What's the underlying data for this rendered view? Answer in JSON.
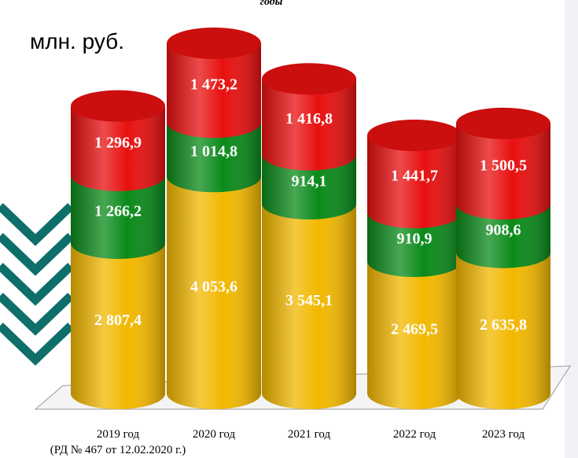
{
  "chart_data": {
    "type": "stacked-cylinder",
    "title": "годы",
    "unit_label": "млн. руб.",
    "categories": [
      "2019 год",
      "2020 год",
      "2021 год",
      "2022 год",
      "2023 год"
    ],
    "category_note": "(РД № 467 от 12.02.2020 г.)",
    "series": [
      {
        "color": "#f2b800",
        "values": [
          2807.4,
          4053.6,
          3545.1,
          2469.5,
          2635.8
        ],
        "value_labels": [
          "2 807,4",
          "4 053,6",
          "3 545,1",
          "2 469,5",
          "2 635,8"
        ]
      },
      {
        "color": "#0a8a1a",
        "values": [
          1266.2,
          1014.8,
          914.1,
          910.9,
          908.6
        ],
        "value_labels": [
          "1 266,2",
          "1 014,8",
          "914,1",
          "910,9",
          "908,6"
        ]
      },
      {
        "color": "#e81010",
        "values": [
          1296.9,
          1473.2,
          1416.8,
          1441.7,
          1500.5
        ],
        "value_labels": [
          "1 296,9",
          "1 473,2",
          "1 416,8",
          "1 441,7",
          "1 500,5"
        ]
      }
    ]
  }
}
